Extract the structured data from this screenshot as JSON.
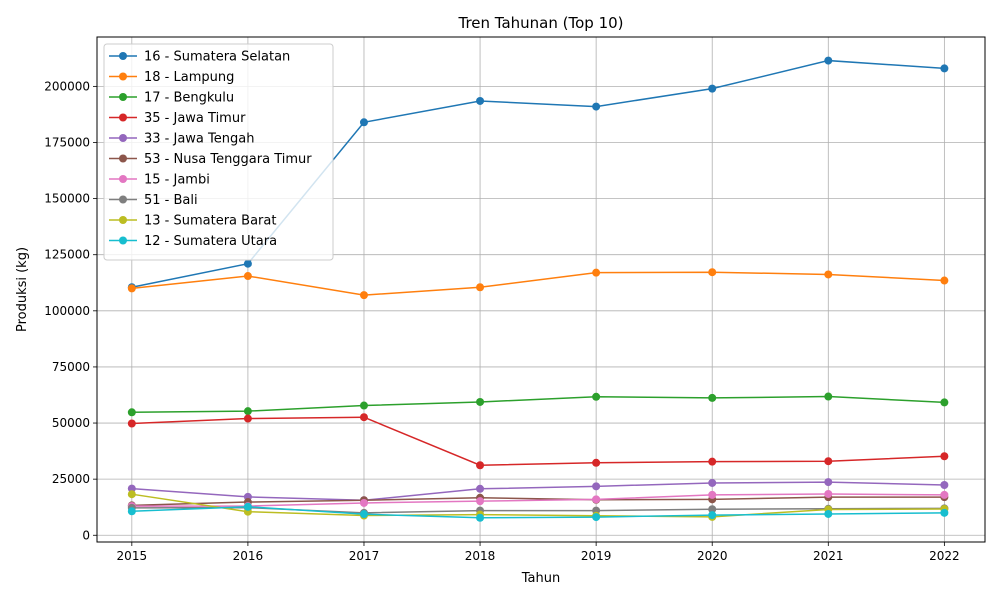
{
  "chart_data": {
    "type": "line",
    "title": "Tren Tahunan (Top 10)",
    "xlabel": "Tahun",
    "ylabel": "Produksi (kg)",
    "x": [
      2015,
      2016,
      2017,
      2018,
      2019,
      2020,
      2021,
      2022
    ],
    "xlim": [
      2014.7,
      2022.35
    ],
    "ylim": [
      -3000,
      222000
    ],
    "yticks": [
      0,
      25000,
      50000,
      75000,
      100000,
      125000,
      150000,
      175000,
      200000
    ],
    "grid": true,
    "legend_position": "upper-left",
    "series": [
      {
        "name": "16 - Sumatera Selatan",
        "color": "#1f77b4",
        "values": [
          110500,
          121000,
          184000,
          193500,
          191000,
          199000,
          211500,
          208000
        ]
      },
      {
        "name": "18 - Lampung",
        "color": "#ff7f0e",
        "values": [
          110000,
          115500,
          107000,
          110500,
          117000,
          117200,
          116200,
          113500
        ]
      },
      {
        "name": "17 - Bengkulu",
        "color": "#2ca02c",
        "values": [
          54800,
          55300,
          57800,
          59400,
          61700,
          61200,
          61800,
          59200
        ]
      },
      {
        "name": "35 - Jawa Timur",
        "color": "#d62728",
        "values": [
          49800,
          52000,
          52600,
          31200,
          32300,
          32800,
          33000,
          35200
        ]
      },
      {
        "name": "33 - Jawa Tengah",
        "color": "#9467bd",
        "values": [
          20800,
          17100,
          15600,
          20700,
          21800,
          23300,
          23700,
          22400
        ]
      },
      {
        "name": "53 - Nusa Tenggara Timur",
        "color": "#8c564b",
        "values": [
          13300,
          14800,
          15600,
          16700,
          15800,
          16000,
          17000,
          17000
        ]
      },
      {
        "name": "15 - Jambi",
        "color": "#e377c2",
        "values": [
          13000,
          13000,
          14400,
          15200,
          16000,
          18000,
          18400,
          18000
        ]
      },
      {
        "name": "51 - Bali",
        "color": "#7f7f7f",
        "values": [
          12200,
          12300,
          10000,
          11000,
          11000,
          11600,
          11800,
          12000
        ]
      },
      {
        "name": "13 - Sumatera Barat",
        "color": "#bcbd22",
        "values": [
          18300,
          10500,
          8800,
          9200,
          8700,
          8200,
          11500,
          11700
        ]
      },
      {
        "name": "12 - Sumatera Utara",
        "color": "#17becf",
        "values": [
          10700,
          12700,
          9400,
          7800,
          8100,
          9000,
          9500,
          10000
        ]
      }
    ]
  }
}
